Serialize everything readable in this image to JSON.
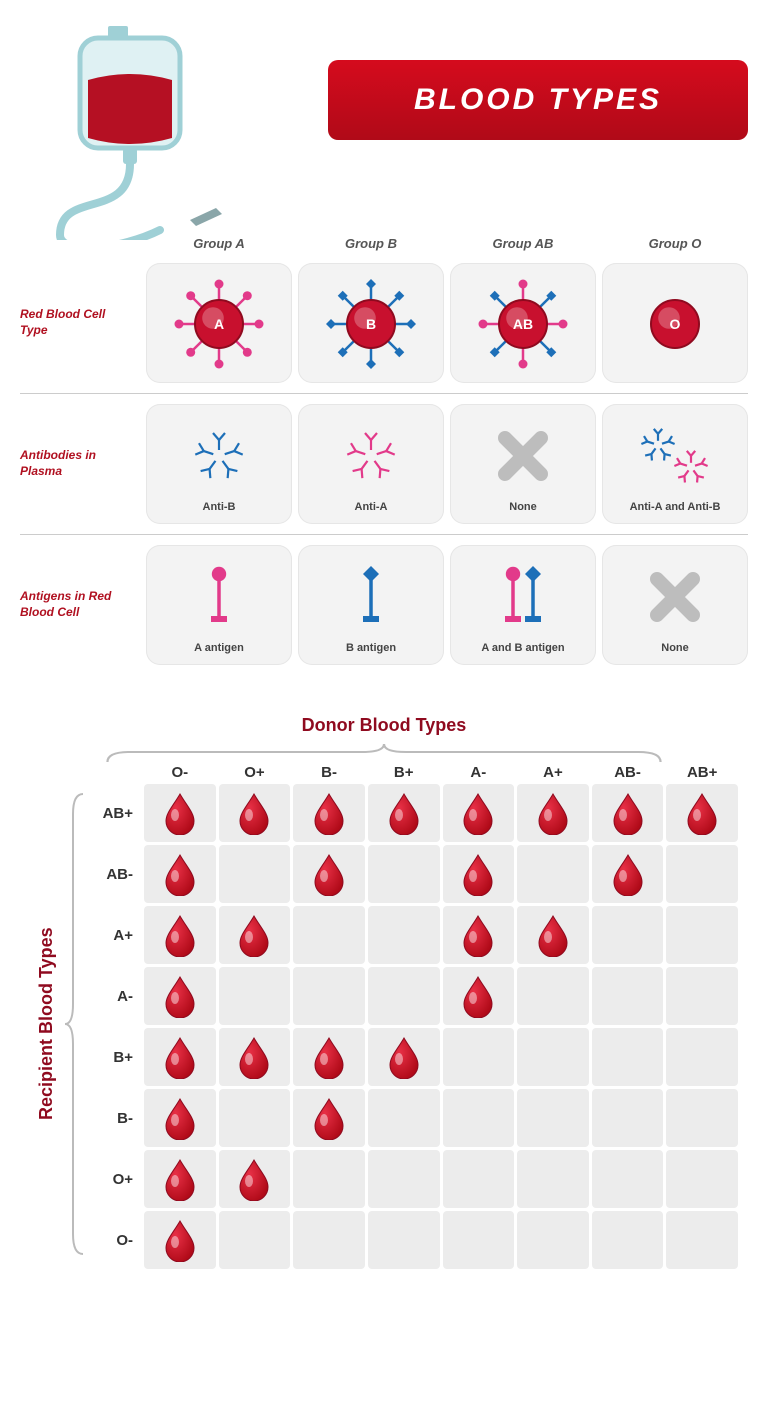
{
  "title": "BLOOD TYPES",
  "colors": {
    "title_bg_start": "#d50b1d",
    "title_bg_end": "#b00a18",
    "title_text": "#ffffff",
    "row_label": "#b01020",
    "col_label": "#555555",
    "tile_bg": "#f3f3f3",
    "tile_border": "#e6e6e6",
    "cell_bg": "#ececec",
    "blood_red": "#c8102e",
    "blood_red_dark": "#8f0a1f",
    "pink": "#e23a8a",
    "blue": "#1d6fb8",
    "grey_x": "#bdbdbd",
    "bag_outline": "#9fd0d6",
    "bag_liquid": "#b51023",
    "drop_light": "#e83046",
    "drop_dark": "#b00a18"
  },
  "groups": [
    "Group A",
    "Group B",
    "Group AB",
    "Group O"
  ],
  "rows": {
    "cell_type": "Red Blood Cell Type",
    "antibodies": "Antibodies in Plasma",
    "antigens": "Antigens in Red Blood Cell"
  },
  "cell_types": {
    "A": {
      "label": "A",
      "antigens": [
        "A"
      ]
    },
    "B": {
      "label": "B",
      "antigens": [
        "B"
      ]
    },
    "AB": {
      "label": "AB",
      "antigens": [
        "A",
        "B"
      ]
    },
    "O": {
      "label": "O",
      "antigens": []
    }
  },
  "antibodies": {
    "A": {
      "caption": "Anti-B",
      "shapes": [
        "B"
      ]
    },
    "B": {
      "caption": "Anti-A",
      "shapes": [
        "A"
      ]
    },
    "AB": {
      "caption": "None",
      "shapes": []
    },
    "O": {
      "caption": "Anti-A and Anti-B",
      "shapes": [
        "B",
        "A"
      ]
    }
  },
  "antigens_row": {
    "A": {
      "caption": "A antigen",
      "shapes": [
        "A"
      ]
    },
    "B": {
      "caption": "B antigen",
      "shapes": [
        "B"
      ]
    },
    "AB": {
      "caption": "A and B antigen",
      "shapes": [
        "A",
        "B"
      ]
    },
    "O": {
      "caption": "None",
      "shapes": []
    }
  },
  "compat": {
    "title_top": "Donor Blood Types",
    "title_left": "Recipient Blood Types",
    "donors": [
      "O-",
      "O+",
      "B-",
      "B+",
      "A-",
      "A+",
      "AB-",
      "AB+"
    ],
    "recipients": [
      "AB+",
      "AB-",
      "A+",
      "A-",
      "B+",
      "B-",
      "O+",
      "O-"
    ],
    "matrix": [
      [
        1,
        1,
        1,
        1,
        1,
        1,
        1,
        1
      ],
      [
        1,
        0,
        1,
        0,
        1,
        0,
        1,
        0
      ],
      [
        1,
        1,
        0,
        0,
        1,
        1,
        0,
        0
      ],
      [
        1,
        0,
        0,
        0,
        1,
        0,
        0,
        0
      ],
      [
        1,
        1,
        1,
        1,
        0,
        0,
        0,
        0
      ],
      [
        1,
        0,
        1,
        0,
        0,
        0,
        0,
        0
      ],
      [
        1,
        1,
        0,
        0,
        0,
        0,
        0,
        0
      ],
      [
        1,
        0,
        0,
        0,
        0,
        0,
        0,
        0
      ]
    ]
  }
}
